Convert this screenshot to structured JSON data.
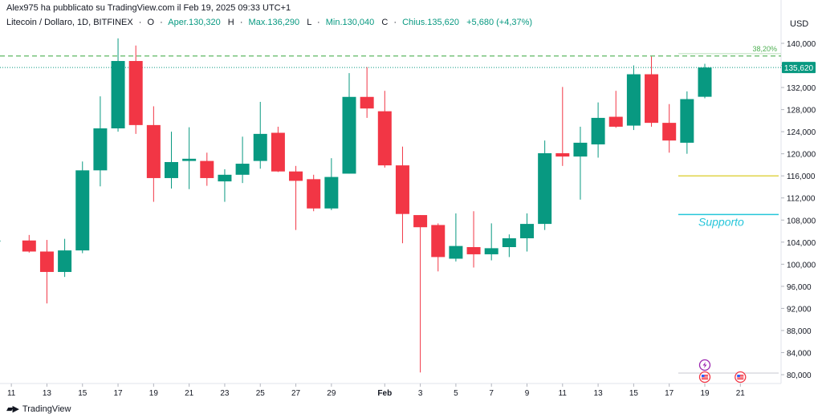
{
  "header": {
    "published_by": "Alex975 ha pubblicato su TradingView.com il Feb 19, 2025 09:33 UTC+1",
    "symbol": "Litecoin / Dollaro, 1D, BITFINEX",
    "open_label": "O",
    "open": "Aper.130,320",
    "high_label": "H",
    "high": "Max.136,290",
    "low_label": "L",
    "low": "Min.130,040",
    "close_label": "C",
    "close": "Chius.135,620",
    "change": "+5,680 (+4,37%)",
    "currency": "USD"
  },
  "footer": {
    "brand": "TradingView",
    "logo": "tradingview-logo-icon"
  },
  "colors": {
    "up": "#089981",
    "down": "#f23645",
    "fib": "#4caf50",
    "support_text": "#26c6da",
    "yellow": "#e0d44a"
  },
  "chart_data": {
    "type": "candlestick",
    "y_axis": {
      "range": [
        79000,
        143000
      ],
      "ticks": [
        80000,
        84000,
        88000,
        92000,
        96000,
        100000,
        104000,
        108000,
        112000,
        116000,
        120000,
        124000,
        128000,
        132000,
        136000,
        140000
      ],
      "tick_labels": [
        "80,000",
        "84,000",
        "88,000",
        "92,000",
        "96,000",
        "100,000",
        "104,000",
        "108,000",
        "112,000",
        "116,000",
        "120,000",
        "124,000",
        "128,000",
        "132,000",
        "136,000",
        "140,000"
      ],
      "position": "right"
    },
    "x_axis": {
      "start_date": "2025-01-10",
      "tick_labels": [
        {
          "label": "11",
          "date": "2025-01-11"
        },
        {
          "label": "13",
          "date": "2025-01-13"
        },
        {
          "label": "15",
          "date": "2025-01-15"
        },
        {
          "label": "17",
          "date": "2025-01-17"
        },
        {
          "label": "19",
          "date": "2025-01-19"
        },
        {
          "label": "21",
          "date": "2025-01-21"
        },
        {
          "label": "23",
          "date": "2025-01-23"
        },
        {
          "label": "25",
          "date": "2025-01-25"
        },
        {
          "label": "27",
          "date": "2025-01-27"
        },
        {
          "label": "29",
          "date": "2025-01-29"
        },
        {
          "label": "Feb",
          "date": "2025-02-01"
        },
        {
          "label": "3",
          "date": "2025-02-03"
        },
        {
          "label": "5",
          "date": "2025-02-05"
        },
        {
          "label": "7",
          "date": "2025-02-07"
        },
        {
          "label": "9",
          "date": "2025-02-09"
        },
        {
          "label": "11",
          "date": "2025-02-11"
        },
        {
          "label": "13",
          "date": "2025-02-13"
        },
        {
          "label": "15",
          "date": "2025-02-15"
        },
        {
          "label": "17",
          "date": "2025-02-17"
        },
        {
          "label": "19",
          "date": "2025-02-19"
        },
        {
          "label": "21",
          "date": "2025-02-21"
        }
      ],
      "range": [
        "2025-01-10",
        "2025-02-22"
      ]
    },
    "candles": [
      {
        "date": "2025-01-10",
        "open": 104200,
        "high": 106000,
        "low": 102300,
        "close": 104300
      },
      {
        "date": "2025-01-12",
        "open": 104300,
        "high": 105300,
        "low": 102100,
        "close": 102300
      },
      {
        "date": "2025-01-13",
        "open": 102300,
        "high": 104400,
        "low": 92900,
        "close": 98600
      },
      {
        "date": "2025-01-14",
        "open": 98600,
        "high": 104600,
        "low": 97700,
        "close": 102500
      },
      {
        "date": "2025-01-15",
        "open": 102500,
        "high": 118600,
        "low": 102000,
        "close": 117000
      },
      {
        "date": "2025-01-16",
        "open": 117000,
        "high": 130400,
        "low": 114100,
        "close": 124600
      },
      {
        "date": "2025-01-17",
        "open": 124600,
        "high": 140900,
        "low": 124000,
        "close": 136800
      },
      {
        "date": "2025-01-18",
        "open": 136800,
        "high": 139600,
        "low": 123600,
        "close": 125200
      },
      {
        "date": "2025-01-19",
        "open": 125200,
        "high": 128600,
        "low": 111300,
        "close": 115600
      },
      {
        "date": "2025-01-20",
        "open": 115600,
        "high": 124000,
        "low": 113700,
        "close": 118500
      },
      {
        "date": "2025-01-21",
        "open": 118700,
        "high": 124800,
        "low": 113600,
        "close": 119100
      },
      {
        "date": "2025-01-22",
        "open": 118700,
        "high": 120200,
        "low": 114200,
        "close": 115600
      },
      {
        "date": "2025-01-23",
        "open": 115000,
        "high": 117200,
        "low": 111300,
        "close": 116200
      },
      {
        "date": "2025-01-24",
        "open": 116200,
        "high": 123100,
        "low": 114700,
        "close": 118200
      },
      {
        "date": "2025-01-25",
        "open": 118700,
        "high": 129400,
        "low": 117300,
        "close": 123600
      },
      {
        "date": "2025-01-26",
        "open": 123800,
        "high": 124900,
        "low": 116700,
        "close": 116800
      },
      {
        "date": "2025-01-27",
        "open": 116800,
        "high": 117800,
        "low": 106200,
        "close": 115100
      },
      {
        "date": "2025-01-28",
        "open": 115400,
        "high": 116200,
        "low": 109600,
        "close": 110100
      },
      {
        "date": "2025-01-29",
        "open": 110100,
        "high": 119200,
        "low": 109800,
        "close": 115800
      },
      {
        "date": "2025-01-30",
        "open": 116400,
        "high": 134600,
        "low": 116400,
        "close": 130300
      },
      {
        "date": "2025-01-31",
        "open": 130300,
        "high": 135700,
        "low": 126500,
        "close": 128200
      },
      {
        "date": "2025-02-01",
        "open": 127700,
        "high": 131400,
        "low": 117500,
        "close": 117900
      },
      {
        "date": "2025-02-02",
        "open": 117900,
        "high": 121300,
        "low": 103800,
        "close": 109100
      },
      {
        "date": "2025-02-03",
        "open": 108900,
        "high": 108900,
        "low": 80400,
        "close": 106700
      },
      {
        "date": "2025-02-04",
        "open": 107100,
        "high": 107400,
        "low": 98700,
        "close": 101300
      },
      {
        "date": "2025-02-05",
        "open": 101000,
        "high": 109200,
        "low": 100500,
        "close": 103300
      },
      {
        "date": "2025-02-06",
        "open": 103100,
        "high": 109600,
        "low": 99400,
        "close": 101800
      },
      {
        "date": "2025-02-07",
        "open": 101800,
        "high": 107400,
        "low": 100700,
        "close": 102900
      },
      {
        "date": "2025-02-08",
        "open": 103100,
        "high": 105400,
        "low": 101300,
        "close": 104700
      },
      {
        "date": "2025-02-09",
        "open": 104700,
        "high": 109200,
        "low": 102300,
        "close": 107300
      },
      {
        "date": "2025-02-10",
        "open": 107300,
        "high": 122400,
        "low": 106200,
        "close": 120100
      },
      {
        "date": "2025-02-11",
        "open": 120100,
        "high": 132100,
        "low": 117800,
        "close": 119500
      },
      {
        "date": "2025-02-12",
        "open": 119500,
        "high": 124900,
        "low": 111700,
        "close": 122000
      },
      {
        "date": "2025-02-13",
        "open": 121700,
        "high": 129300,
        "low": 119300,
        "close": 126500
      },
      {
        "date": "2025-02-14",
        "open": 126700,
        "high": 131400,
        "low": 124700,
        "close": 124900
      },
      {
        "date": "2025-02-15",
        "open": 125100,
        "high": 136000,
        "low": 124300,
        "close": 134400
      },
      {
        "date": "2025-02-16",
        "open": 134400,
        "high": 137600,
        "low": 124900,
        "close": 125600
      },
      {
        "date": "2025-02-17",
        "open": 125600,
        "high": 129000,
        "low": 120200,
        "close": 122400
      },
      {
        "date": "2025-02-18",
        "open": 122000,
        "high": 131300,
        "low": 120000,
        "close": 129900
      },
      {
        "date": "2025-02-19",
        "open": 130320,
        "high": 136290,
        "low": 130040,
        "close": 135620
      }
    ],
    "last_price": {
      "value": 135620,
      "label": "135,620"
    },
    "annotations": [
      {
        "type": "hline-dashed",
        "label": "38,20%",
        "value": 137700,
        "color": "#4caf50"
      },
      {
        "type": "hline",
        "value": 116000,
        "color": "#e0d44a"
      },
      {
        "type": "hline",
        "value": 109000,
        "color": "#26c6da"
      },
      {
        "type": "text",
        "text": "Supporto",
        "color": "#26c6da"
      }
    ],
    "event_markers": [
      {
        "icon": "lightning-icon",
        "date": "2025-02-19"
      },
      {
        "icon": "us-flag-icon",
        "date": "2025-02-19"
      },
      {
        "icon": "us-flag-icon",
        "date": "2025-02-21"
      }
    ]
  }
}
